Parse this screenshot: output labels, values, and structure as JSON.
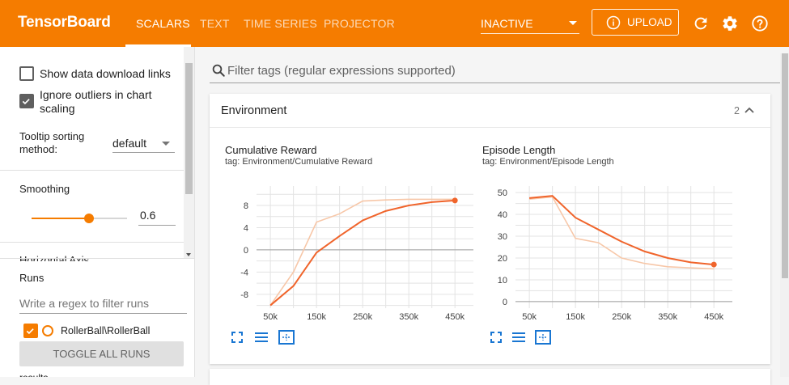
{
  "header": {
    "brand": "TensorBoard",
    "tabs": [
      {
        "label": "SCALARS",
        "active": true
      },
      {
        "label": "TEXT",
        "active": false
      },
      {
        "label": "TIME SERIES",
        "active": false
      },
      {
        "label": "PROJECTOR",
        "active": false
      }
    ],
    "status_select": "INACTIVE",
    "upload_label": "UPLOAD",
    "icons": [
      "info-icon",
      "refresh-icon",
      "gear-icon",
      "help-icon"
    ],
    "accent_color": "#f57c00"
  },
  "sidebar": {
    "show_download_links": {
      "label": "Show data download links",
      "checked": false
    },
    "ignore_outliers": {
      "label_line1": "Ignore outliers in chart",
      "label_line2": "scaling",
      "checked": true
    },
    "tooltip_sorting": {
      "label_line1": "Tooltip sorting",
      "label_line2": "method:",
      "value": "default"
    },
    "smoothing": {
      "label": "Smoothing",
      "value": "0.6",
      "level": 0.6
    },
    "horizontal_axis_label": "Horizontal Axis",
    "runs": {
      "label": "Runs",
      "filter_placeholder": "Write a regex to filter runs",
      "items": [
        {
          "name": "RollerBall\\RollerBall",
          "checked": true,
          "color": "#f57c00"
        }
      ],
      "toggle_all_label": "TOGGLE ALL RUNS",
      "footer_text": "results"
    }
  },
  "main": {
    "search_placeholder": "Filter tags (regular expressions supported)",
    "card": {
      "title": "Environment",
      "count": "2"
    }
  },
  "chart_data": [
    {
      "type": "line",
      "title": "Cumulative Reward",
      "tag": "tag: Environment/Cumulative Reward",
      "xticks": [
        "50k",
        "150k",
        "250k",
        "350k",
        "450k"
      ],
      "yticks": [
        "8",
        "4",
        "0",
        "-4",
        "-8"
      ],
      "xlim": [
        20000,
        490000
      ],
      "ylim": [
        -10.5,
        11.5
      ],
      "series": [
        {
          "role": "raw",
          "x": [
            50000,
            100000,
            150000,
            200000,
            250000,
            300000,
            350000,
            400000,
            450000
          ],
          "y": [
            -10,
            -4,
            5,
            6.5,
            8.8,
            9,
            9.1,
            9.1,
            9.1
          ]
        },
        {
          "role": "smoothed",
          "x": [
            50000,
            100000,
            150000,
            200000,
            250000,
            300000,
            350000,
            400000,
            450000
          ],
          "y": [
            -10,
            -6.5,
            -0.5,
            2.5,
            5.3,
            7,
            8,
            8.6,
            8.9
          ]
        }
      ]
    },
    {
      "type": "line",
      "title": "Episode Length",
      "tag": "tag: Environment/Episode Length",
      "xticks": [
        "50k",
        "150k",
        "250k",
        "350k",
        "450k"
      ],
      "yticks": [
        "50",
        "40",
        "30",
        "20",
        "10",
        "0"
      ],
      "xlim": [
        20000,
        490000
      ],
      "ylim": [
        -3,
        53
      ],
      "series": [
        {
          "role": "raw",
          "x": [
            50000,
            100000,
            150000,
            200000,
            250000,
            300000,
            350000,
            400000,
            450000
          ],
          "y": [
            47,
            48,
            29,
            27,
            20,
            17.5,
            16,
            15.5,
            15
          ]
        },
        {
          "role": "smoothed",
          "x": [
            50000,
            100000,
            150000,
            200000,
            250000,
            300000,
            350000,
            400000,
            450000
          ],
          "y": [
            47.5,
            48.5,
            38.5,
            33,
            27.5,
            23,
            20,
            18,
            17
          ]
        }
      ]
    }
  ]
}
